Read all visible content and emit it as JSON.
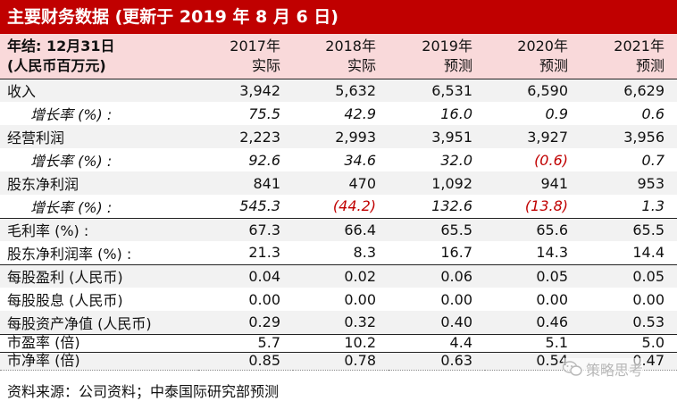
{
  "title": "主要财务数据 (更新于 2019 年 8 月 6 日)",
  "header": {
    "label_line1": "年结: 12月31日",
    "label_line2": "(人民币百万元)",
    "columns": [
      {
        "year": "2017年",
        "type": "实际"
      },
      {
        "year": "2018年",
        "type": "实际"
      },
      {
        "year": "2019年",
        "type": "预测"
      },
      {
        "year": "2020年",
        "type": "预测"
      },
      {
        "year": "2021年",
        "type": "预测"
      }
    ]
  },
  "rows": [
    {
      "label": "收入",
      "values": [
        "3,942",
        "5,632",
        "6,531",
        "6,590",
        "6,629"
      ]
    },
    {
      "label": "增长率 (%) :",
      "values": [
        "75.5",
        "42.9",
        "16.0",
        "0.9",
        "0.6"
      ]
    },
    {
      "label": "经营利润",
      "values": [
        "2,223",
        "2,993",
        "3,951",
        "3,927",
        "3,956"
      ]
    },
    {
      "label": "增长率 (%) :",
      "values": [
        "92.6",
        "34.6",
        "32.0",
        "(0.6)",
        "0.7"
      ]
    },
    {
      "label": "股东净利润",
      "values": [
        "841",
        "470",
        "1,092",
        "941",
        "953"
      ]
    },
    {
      "label": "增长率 (%) :",
      "values": [
        "545.3",
        "(44.2)",
        "132.6",
        "(13.8)",
        "1.3"
      ]
    },
    {
      "label": "毛利率 (%) :",
      "values": [
        "67.3",
        "66.4",
        "65.5",
        "65.6",
        "65.5"
      ]
    },
    {
      "label": "股东净利润率 (%) :",
      "values": [
        "21.3",
        "8.3",
        "16.7",
        "14.3",
        "14.4"
      ]
    },
    {
      "label": "每股盈利 (人民币)",
      "values": [
        "0.04",
        "0.02",
        "0.06",
        "0.05",
        "0.05"
      ]
    },
    {
      "label": "每股股息 (人民币)",
      "values": [
        "0.00",
        "0.00",
        "0.00",
        "0.00",
        "0.00"
      ]
    },
    {
      "label": "每股资产净值 (人民币)",
      "values": [
        "0.29",
        "0.32",
        "0.40",
        "0.46",
        "0.53"
      ]
    },
    {
      "label": "市盈率 (倍)",
      "values": [
        "5.7",
        "10.2",
        "4.4",
        "5.1",
        "5.0"
      ]
    },
    {
      "label": "市净率 (倍)",
      "values": [
        "0.85",
        "0.78",
        "0.63",
        "0.54",
        "0.47"
      ]
    }
  ],
  "source": "资料来源：公司资料；中泰国际研究部预测",
  "watermark": "策略思考",
  "watermark_icon": "wechat-icon",
  "negative_color": "#c00000",
  "title_bar_color": "#c00000",
  "header_bg_color": "#f9d9da"
}
